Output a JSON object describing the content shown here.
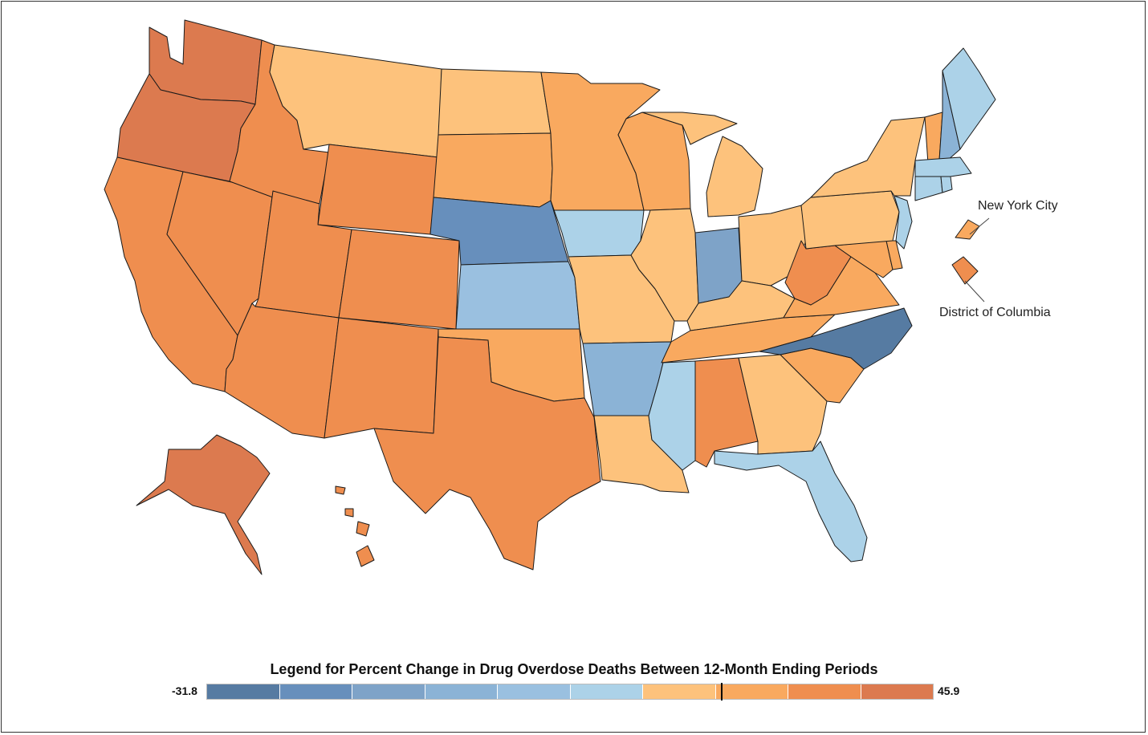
{
  "legend": {
    "title": "Legend for Percent Change in Drug Overdose Deaths Between 12-Month Ending Periods",
    "min_label": "-31.8",
    "max_label": "45.9",
    "min": -31.8,
    "max": 45.9,
    "marker_value": 23.3,
    "colors": [
      "#567ba2",
      "#678fbc",
      "#7ea3c8",
      "#8bb3d6",
      "#9ac0e0",
      "#acd2e8",
      "#fdc27c",
      "#f9a95f",
      "#ef8e4f",
      "#dc7a4f"
    ]
  },
  "callouts": {
    "nyc": "New York City",
    "dc": "District of Columbia"
  },
  "states": {
    "WA": 9,
    "OR": 9,
    "CA": 8,
    "NV": 8,
    "ID": 8,
    "MT": 6,
    "WY": 8,
    "UT": 8,
    "CO": 8,
    "AZ": 8,
    "NM": 8,
    "ND": 6,
    "SD": 7,
    "NE": 1,
    "KS": 4,
    "OK": 7,
    "TX": 8,
    "MN": 7,
    "IA": 5,
    "MO": 6,
    "AR": 3,
    "LA": 6,
    "WI": 7,
    "IL": 6,
    "IN": 2,
    "MI": 6,
    "OH": 6,
    "KY": 6,
    "TN": 7,
    "MS": 5,
    "AL": 8,
    "GA": 6,
    "FL": 5,
    "SC": 7,
    "NC": 0,
    "VA": 7,
    "WV": 8,
    "MD": 7,
    "DE": 7,
    "PA": 6,
    "NY": 6,
    "NJ": 5,
    "CT": 5,
    "RI": 5,
    "MA": 5,
    "VT": 7,
    "NH": 3,
    "ME": 5,
    "AK": 9,
    "HI": 8,
    "NYC": 7,
    "DC": 8
  }
}
